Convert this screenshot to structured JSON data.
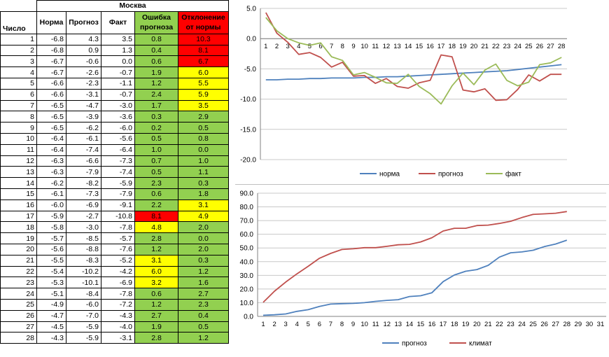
{
  "table": {
    "city": "Москва",
    "headers": {
      "day": "Число",
      "norm": "Норма",
      "forecast": "Прогноз",
      "fact": "Факт",
      "error_line1": "Ошибка",
      "error_line2": "прогноза",
      "dev_line1": "Отклонение",
      "dev_line2": "от нормы"
    },
    "colors": {
      "green": "#92d050",
      "yellow": "#ffff00",
      "red": "#ff0000"
    },
    "rows": [
      {
        "day": "1",
        "norm": "-6.8",
        "forecast": "4.3",
        "fact": "3.5",
        "error": "0.8",
        "error_color": "green",
        "dev": "10.3",
        "dev_color": "red"
      },
      {
        "day": "2",
        "norm": "-6.8",
        "forecast": "0.9",
        "fact": "1.3",
        "error": "0.4",
        "error_color": "green",
        "dev": "8.1",
        "dev_color": "red"
      },
      {
        "day": "3",
        "norm": "-6.7",
        "forecast": "-0.6",
        "fact": "0.0",
        "error": "0.6",
        "error_color": "green",
        "dev": "6.7",
        "dev_color": "red"
      },
      {
        "day": "4",
        "norm": "-6.7",
        "forecast": "-2.6",
        "fact": "-0.7",
        "error": "1.9",
        "error_color": "green",
        "dev": "6.0",
        "dev_color": "yellow"
      },
      {
        "day": "5",
        "norm": "-6.6",
        "forecast": "-2.3",
        "fact": "-1.1",
        "error": "1.2",
        "error_color": "green",
        "dev": "5.5",
        "dev_color": "yellow"
      },
      {
        "day": "6",
        "norm": "-6.6",
        "forecast": "-3.1",
        "fact": "-0.7",
        "error": "2.4",
        "error_color": "green",
        "dev": "5.9",
        "dev_color": "yellow"
      },
      {
        "day": "7",
        "norm": "-6.5",
        "forecast": "-4.7",
        "fact": "-3.0",
        "error": "1.7",
        "error_color": "green",
        "dev": "3.5",
        "dev_color": "yellow"
      },
      {
        "day": "8",
        "norm": "-6.5",
        "forecast": "-3.9",
        "fact": "-3.6",
        "error": "0.3",
        "error_color": "green",
        "dev": "2.9",
        "dev_color": "green"
      },
      {
        "day": "9",
        "norm": "-6.5",
        "forecast": "-6.2",
        "fact": "-6.0",
        "error": "0.2",
        "error_color": "green",
        "dev": "0.5",
        "dev_color": "green"
      },
      {
        "day": "10",
        "norm": "-6.4",
        "forecast": "-6.1",
        "fact": "-5.6",
        "error": "0.5",
        "error_color": "green",
        "dev": "0.8",
        "dev_color": "green"
      },
      {
        "day": "11",
        "norm": "-6.4",
        "forecast": "-7.4",
        "fact": "-6.4",
        "error": "1.0",
        "error_color": "green",
        "dev": "0.0",
        "dev_color": "green"
      },
      {
        "day": "12",
        "norm": "-6.3",
        "forecast": "-6.6",
        "fact": "-7.3",
        "error": "0.7",
        "error_color": "green",
        "dev": "1.0",
        "dev_color": "green"
      },
      {
        "day": "13",
        "norm": "-6.3",
        "forecast": "-7.9",
        "fact": "-7.4",
        "error": "0.5",
        "error_color": "green",
        "dev": "1.1",
        "dev_color": "green"
      },
      {
        "day": "14",
        "norm": "-6.2",
        "forecast": "-8.2",
        "fact": "-5.9",
        "error": "2.3",
        "error_color": "green",
        "dev": "0.3",
        "dev_color": "green"
      },
      {
        "day": "15",
        "norm": "-6.1",
        "forecast": "-7.3",
        "fact": "-7.9",
        "error": "0.6",
        "error_color": "green",
        "dev": "1.8",
        "dev_color": "green"
      },
      {
        "day": "16",
        "norm": "-6.0",
        "forecast": "-6.9",
        "fact": "-9.1",
        "error": "2.2",
        "error_color": "green",
        "dev": "3.1",
        "dev_color": "yellow"
      },
      {
        "day": "17",
        "norm": "-5.9",
        "forecast": "-2.7",
        "fact": "-10.8",
        "error": "8.1",
        "error_color": "red",
        "dev": "4.9",
        "dev_color": "yellow"
      },
      {
        "day": "18",
        "norm": "-5.8",
        "forecast": "-3.0",
        "fact": "-7.8",
        "error": "4.8",
        "error_color": "yellow",
        "dev": "2.0",
        "dev_color": "green"
      },
      {
        "day": "19",
        "norm": "-5.7",
        "forecast": "-8.5",
        "fact": "-5.7",
        "error": "2.8",
        "error_color": "green",
        "dev": "0.0",
        "dev_color": "green"
      },
      {
        "day": "20",
        "norm": "-5.6",
        "forecast": "-8.8",
        "fact": "-7.6",
        "error": "1.2",
        "error_color": "green",
        "dev": "2.0",
        "dev_color": "green"
      },
      {
        "day": "21",
        "norm": "-5.5",
        "forecast": "-8.3",
        "fact": "-5.2",
        "error": "3.1",
        "error_color": "yellow",
        "dev": "0.3",
        "dev_color": "green"
      },
      {
        "day": "22",
        "norm": "-5.4",
        "forecast": "-10.2",
        "fact": "-4.2",
        "error": "6.0",
        "error_color": "yellow",
        "dev": "1.2",
        "dev_color": "green"
      },
      {
        "day": "23",
        "norm": "-5.3",
        "forecast": "-10.1",
        "fact": "-6.9",
        "error": "3.2",
        "error_color": "yellow",
        "dev": "1.6",
        "dev_color": "green"
      },
      {
        "day": "24",
        "norm": "-5.1",
        "forecast": "-8.4",
        "fact": "-7.8",
        "error": "0.6",
        "error_color": "green",
        "dev": "2.7",
        "dev_color": "green"
      },
      {
        "day": "25",
        "norm": "-4.9",
        "forecast": "-6.0",
        "fact": "-7.2",
        "error": "1.2",
        "error_color": "green",
        "dev": "2.3",
        "dev_color": "green"
      },
      {
        "day": "26",
        "norm": "-4.7",
        "forecast": "-7.0",
        "fact": "-4.3",
        "error": "2.7",
        "error_color": "green",
        "dev": "0.4",
        "dev_color": "green"
      },
      {
        "day": "27",
        "norm": "-4.5",
        "forecast": "-5.9",
        "fact": "-4.0",
        "error": "1.9",
        "error_color": "green",
        "dev": "0.5",
        "dev_color": "green"
      },
      {
        "day": "28",
        "norm": "-4.3",
        "forecast": "-5.9",
        "fact": "-3.1",
        "error": "2.8",
        "error_color": "green",
        "dev": "1.2",
        "dev_color": "green"
      }
    ]
  },
  "chart_data": [
    {
      "type": "line",
      "x": [
        1,
        2,
        3,
        4,
        5,
        6,
        7,
        8,
        9,
        10,
        11,
        12,
        13,
        14,
        15,
        16,
        17,
        18,
        19,
        20,
        21,
        22,
        23,
        24,
        25,
        26,
        27,
        28
      ],
      "ylim": [
        -20,
        5
      ],
      "yticks": [
        "5.0",
        "0.0",
        "-5.0",
        "-10.0",
        "-15.0",
        "-20.0"
      ],
      "grid": true,
      "legend": "bottom",
      "series": [
        {
          "name": "норма",
          "color": "#4f81bd",
          "values": [
            -6.8,
            -6.8,
            -6.7,
            -6.7,
            -6.6,
            -6.6,
            -6.5,
            -6.5,
            -6.5,
            -6.4,
            -6.4,
            -6.3,
            -6.3,
            -6.2,
            -6.1,
            -6.0,
            -5.9,
            -5.8,
            -5.7,
            -5.6,
            -5.5,
            -5.4,
            -5.3,
            -5.1,
            -4.9,
            -4.7,
            -4.5,
            -4.3
          ]
        },
        {
          "name": "прогноз",
          "color": "#c0504d",
          "values": [
            4.3,
            0.9,
            -0.6,
            -2.6,
            -2.3,
            -3.1,
            -4.7,
            -3.9,
            -6.2,
            -6.1,
            -7.4,
            -6.6,
            -7.9,
            -8.2,
            -7.3,
            -6.9,
            -2.7,
            -3.0,
            -8.5,
            -8.8,
            -8.3,
            -10.2,
            -10.1,
            -8.4,
            -6.0,
            -7.0,
            -5.9,
            -5.9
          ]
        },
        {
          "name": "факт",
          "color": "#9bbb59",
          "values": [
            3.5,
            1.3,
            0.0,
            -0.7,
            -1.1,
            -0.7,
            -3.0,
            -3.6,
            -6.0,
            -5.6,
            -6.4,
            -7.3,
            -7.4,
            -5.9,
            -7.9,
            -9.1,
            -10.8,
            -7.8,
            -5.7,
            -7.6,
            -5.2,
            -4.2,
            -6.9,
            -7.8,
            -7.2,
            -4.3,
            -4.0,
            -3.1
          ]
        }
      ]
    },
    {
      "type": "line",
      "x": [
        1,
        2,
        3,
        4,
        5,
        6,
        7,
        8,
        9,
        10,
        11,
        12,
        13,
        14,
        15,
        16,
        17,
        18,
        19,
        20,
        21,
        22,
        23,
        24,
        25,
        26,
        27,
        28
      ],
      "xticks": [
        1,
        2,
        3,
        4,
        5,
        6,
        7,
        8,
        9,
        10,
        11,
        12,
        13,
        14,
        15,
        16,
        17,
        18,
        19,
        20,
        21,
        22,
        23,
        24,
        25,
        26,
        27,
        28,
        29,
        30,
        31
      ],
      "ylim": [
        0,
        90
      ],
      "yticks": [
        "90.0",
        "80.0",
        "70.0",
        "60.0",
        "50.0",
        "40.0",
        "30.0",
        "20.0",
        "10.0",
        "0.0"
      ],
      "grid": true,
      "legend": "bottom",
      "series": [
        {
          "name": "прогноз",
          "color": "#4f81bd",
          "values": [
            0.8,
            1.2,
            1.8,
            3.7,
            4.9,
            7.3,
            9.0,
            9.3,
            9.5,
            10.0,
            11.0,
            11.7,
            12.2,
            14.5,
            15.1,
            17.3,
            25.4,
            30.2,
            33.0,
            34.2,
            37.3,
            43.3,
            46.5,
            47.1,
            48.3,
            51.0,
            52.9,
            55.7
          ]
        },
        {
          "name": "климат",
          "color": "#c0504d",
          "values": [
            10.3,
            18.4,
            25.1,
            31.1,
            36.6,
            42.5,
            46.0,
            48.9,
            49.4,
            50.2,
            50.2,
            51.2,
            52.3,
            52.6,
            54.4,
            57.5,
            62.4,
            64.4,
            64.4,
            66.4,
            66.7,
            67.9,
            69.5,
            72.2,
            74.5,
            74.9,
            75.4,
            76.6
          ]
        }
      ]
    }
  ]
}
